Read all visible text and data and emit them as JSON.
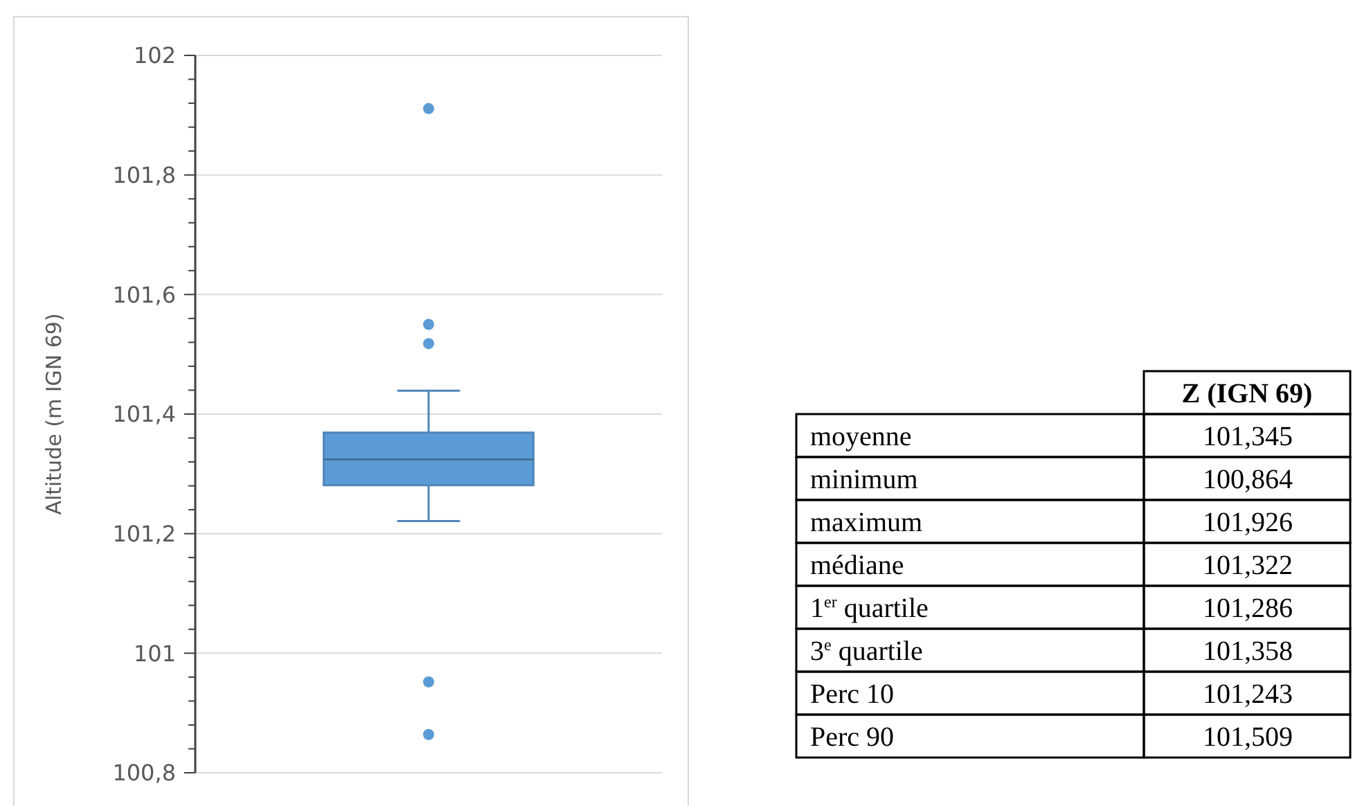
{
  "chart_data": [
    {
      "type": "box",
      "ylabel": "Altitude (m IGN 69)",
      "categories": [
        null
      ],
      "color": "#5b9bd5",
      "boxes": [
        {
          "low": 101.221,
          "q1": 101.281,
          "median": 101.324,
          "q3": 101.369,
          "high": 101.439,
          "outliers": [
            101.911,
            101.55,
            101.518,
            100.952,
            100.864
          ]
        }
      ],
      "ylim": [
        100.8,
        102
      ],
      "yticks": [
        {
          "value": 100.8,
          "label": "100,8"
        },
        {
          "value": 100.84,
          "label": null
        },
        {
          "value": 100.88,
          "label": null
        },
        {
          "value": 100.92,
          "label": null
        },
        {
          "value": 100.96,
          "label": null
        },
        101,
        {
          "value": 101.04,
          "label": null
        },
        {
          "value": 101.08,
          "label": null
        },
        {
          "value": 101.12,
          "label": null
        },
        {
          "value": 101.16,
          "label": null
        },
        {
          "value": 101.2,
          "label": "101,2"
        },
        {
          "value": 101.24,
          "label": null
        },
        {
          "value": 101.28,
          "label": null
        },
        {
          "value": 101.32,
          "label": null
        },
        {
          "value": 101.36,
          "label": null
        },
        {
          "value": 101.4,
          "label": "101,4"
        },
        {
          "value": 101.44,
          "label": null
        },
        {
          "value": 101.48,
          "label": null
        },
        {
          "value": 101.52,
          "label": null
        },
        {
          "value": 101.56,
          "label": null
        },
        {
          "value": 101.6,
          "label": "101,6"
        },
        {
          "value": 101.64,
          "label": null
        },
        {
          "value": 101.68,
          "label": null
        },
        {
          "value": 101.72,
          "label": null
        },
        {
          "value": 101.76,
          "label": null
        },
        {
          "value": 101.8,
          "label": "101,8"
        },
        {
          "value": 101.84,
          "label": null
        },
        {
          "value": 101.88,
          "label": null
        },
        {
          "value": 101.92,
          "label": null
        },
        {
          "value": 101.96,
          "label": null
        },
        102
      ],
      "grid": "y",
      "tick_labels": "y",
      "marker": "circle"
    },
    {
      "type": "other",
      "title": "Z (IGN 69)",
      "categories": [
        "moyenne",
        "minimum",
        "maximum",
        "médiane",
        "1$^{er}$ quartile",
        "3$^{e}$ quartile",
        "Perc 10",
        "Perc 90"
      ],
      "annotations": [
        "101,345",
        "100,864",
        "101,926",
        "101,322",
        "101,286",
        "101,358",
        "101,243",
        "101,509"
      ]
    }
  ]
}
